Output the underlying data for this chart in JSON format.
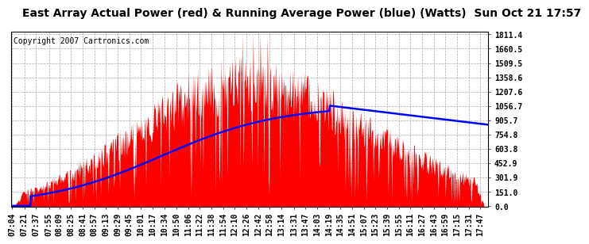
{
  "title": "East Array Actual Power (red) & Running Average Power (blue) (Watts)  Sun Oct 21 17:57",
  "copyright": "Copyright 2007 Cartronics.com",
  "y_ticks": [
    0.0,
    151.0,
    301.9,
    452.9,
    603.8,
    754.8,
    905.7,
    1056.7,
    1207.6,
    1358.6,
    1509.5,
    1660.5,
    1811.4
  ],
  "x_labels": [
    "07:04",
    "07:21",
    "07:37",
    "07:55",
    "08:09",
    "08:25",
    "08:41",
    "08:57",
    "09:13",
    "09:29",
    "09:45",
    "10:01",
    "10:17",
    "10:34",
    "10:50",
    "11:06",
    "11:22",
    "11:38",
    "11:54",
    "12:10",
    "12:26",
    "12:42",
    "12:58",
    "13:14",
    "13:31",
    "13:47",
    "14:03",
    "14:19",
    "14:35",
    "14:51",
    "15:07",
    "15:23",
    "15:39",
    "15:55",
    "16:11",
    "16:27",
    "16:43",
    "16:59",
    "17:15",
    "17:31",
    "17:47"
  ],
  "title_fontsize": 10,
  "tick_fontsize": 7,
  "copyright_fontsize": 7,
  "bg_color": "#ffffff",
  "plot_bg_color": "#ffffff",
  "grid_color": "#aaaaaa",
  "actual_color": "#ff0000",
  "avg_color": "#0000ff",
  "ymin": 0.0,
  "ymax": 1811.4
}
